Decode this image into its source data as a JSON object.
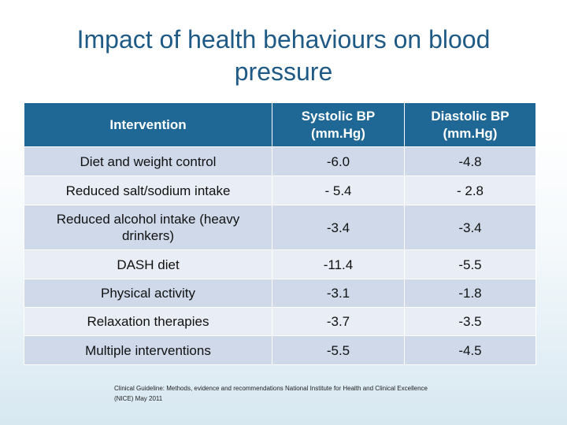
{
  "slide": {
    "title": "Impact of health behaviours on blood pressure"
  },
  "table": {
    "headers": {
      "intervention": "Intervention",
      "systolic": "Systolic BP (mm.Hg)",
      "diastolic": "Diastolic BP (mm.Hg)"
    },
    "rows": [
      {
        "intervention": "Diet and weight control",
        "systolic": "-6.0",
        "diastolic": "-4.8"
      },
      {
        "intervention": "Reduced salt/sodium intake",
        "systolic": "- 5.4",
        "diastolic": "- 2.8"
      },
      {
        "intervention": "Reduced alcohol intake (heavy drinkers)",
        "systolic": "-3.4",
        "diastolic": "-3.4"
      },
      {
        "intervention": "DASH diet",
        "systolic": "-11.4",
        "diastolic": "-5.5"
      },
      {
        "intervention": "Physical activity",
        "systolic": "-3.1",
        "diastolic": "-1.8"
      },
      {
        "intervention": "Relaxation therapies",
        "systolic": "-3.7",
        "diastolic": "-3.5"
      },
      {
        "intervention": "Multiple interventions",
        "systolic": "-5.5",
        "diastolic": "-4.5"
      }
    ]
  },
  "citation": "Clinical Guideline: Methods, evidence and recommendations National Institute for Health and Clinical Excellence (NICE) May 2011"
}
